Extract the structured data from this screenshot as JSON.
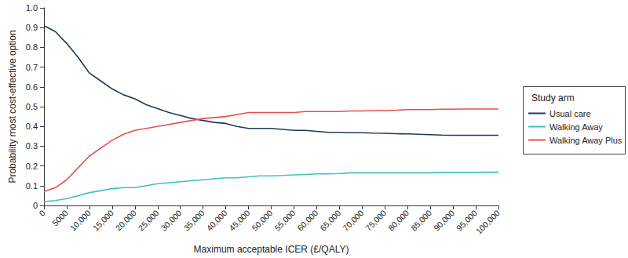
{
  "chart_data": {
    "type": "line",
    "x_label": "Maximum acceptable ICER (£/QALY)",
    "y_label": "Probability most cost-effective option",
    "legend_title": "Study arm",
    "legend": "right",
    "grid": false,
    "x": [
      0,
      2500,
      5000,
      7500,
      10000,
      12500,
      15000,
      17500,
      20000,
      22500,
      25000,
      27500,
      30000,
      32500,
      35000,
      37500,
      40000,
      42500,
      45000,
      47500,
      50000,
      52500,
      55000,
      57500,
      60000,
      62500,
      65000,
      67500,
      70000,
      72500,
      75000,
      77500,
      80000,
      82500,
      85000,
      87500,
      90000,
      92500,
      95000,
      97500,
      100000
    ],
    "series": [
      {
        "name": "Usual care",
        "color": "#1c3a5e",
        "values": [
          0.91,
          0.88,
          0.82,
          0.75,
          0.67,
          0.63,
          0.59,
          0.56,
          0.54,
          0.51,
          0.49,
          0.47,
          0.455,
          0.44,
          0.43,
          0.42,
          0.415,
          0.4,
          0.39,
          0.39,
          0.39,
          0.385,
          0.38,
          0.38,
          0.375,
          0.37,
          0.37,
          0.368,
          0.368,
          0.366,
          0.365,
          0.363,
          0.362,
          0.36,
          0.358,
          0.356,
          0.355,
          0.355,
          0.355,
          0.355,
          0.355
        ]
      },
      {
        "name": "Walking Away",
        "color": "#3fc1c0",
        "values": [
          0.02,
          0.025,
          0.035,
          0.05,
          0.065,
          0.075,
          0.085,
          0.09,
          0.09,
          0.1,
          0.11,
          0.115,
          0.12,
          0.125,
          0.13,
          0.135,
          0.14,
          0.14,
          0.145,
          0.15,
          0.15,
          0.152,
          0.155,
          0.157,
          0.16,
          0.16,
          0.162,
          0.165,
          0.165,
          0.165,
          0.165,
          0.165,
          0.165,
          0.165,
          0.165,
          0.167,
          0.167,
          0.167,
          0.167,
          0.168,
          0.168
        ]
      },
      {
        "name": "Walking Away Plus",
        "color": "#e8514a",
        "values": [
          0.07,
          0.09,
          0.13,
          0.19,
          0.25,
          0.29,
          0.33,
          0.36,
          0.38,
          0.39,
          0.4,
          0.41,
          0.42,
          0.43,
          0.44,
          0.445,
          0.45,
          0.46,
          0.47,
          0.47,
          0.47,
          0.47,
          0.47,
          0.475,
          0.475,
          0.475,
          0.475,
          0.478,
          0.478,
          0.48,
          0.48,
          0.482,
          0.485,
          0.485,
          0.485,
          0.487,
          0.487,
          0.488,
          0.488,
          0.488,
          0.488
        ]
      }
    ],
    "xlim": [
      0,
      100000
    ],
    "xticks": [
      0,
      5000,
      {
        "value": 10000,
        "label": "10,000"
      },
      {
        "value": 15000,
        "label": "15,000"
      },
      {
        "value": 20000,
        "label": "20,000"
      },
      {
        "value": 25000,
        "label": "25,000"
      },
      {
        "value": 30000,
        "label": "30,000"
      },
      {
        "value": 35000,
        "label": "35,000"
      },
      {
        "value": 40000,
        "label": "40,000"
      },
      {
        "value": 45000,
        "label": "45,000"
      },
      {
        "value": 50000,
        "label": "50,000"
      },
      {
        "value": 55000,
        "label": "55,000"
      },
      {
        "value": 60000,
        "label": "60,000"
      },
      {
        "value": 65000,
        "label": "65,000"
      },
      {
        "value": 70000,
        "label": "70,000"
      },
      {
        "value": 75000,
        "label": "75,000"
      },
      {
        "value": 80000,
        "label": "80,000"
      },
      {
        "value": 85000,
        "label": "85,000"
      },
      {
        "value": 90000,
        "label": "90,000"
      },
      {
        "value": 95000,
        "label": "95,000"
      },
      {
        "value": 100000,
        "label": "100,000"
      }
    ],
    "ylim": [
      0,
      1
    ],
    "yticks": [
      0,
      0.1,
      0.2,
      0.3,
      0.4,
      0.5,
      0.6,
      0.7,
      0.8,
      0.9,
      {
        "value": 1,
        "label": "1.0"
      }
    ]
  }
}
